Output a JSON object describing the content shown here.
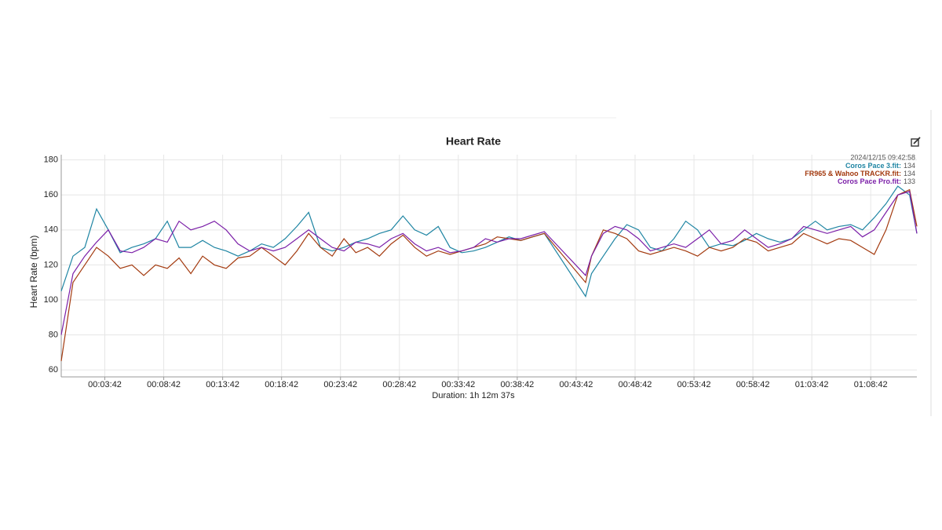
{
  "chart_data": {
    "type": "line",
    "title": "Heart Rate",
    "x_label": "Duration: 1h 12m 37s",
    "y_label": "Heart Rate (bpm)",
    "x": [
      0,
      60,
      120,
      180,
      240,
      300,
      360,
      420,
      480,
      540,
      600,
      660,
      720,
      780,
      840,
      900,
      960,
      1020,
      1080,
      1140,
      1200,
      1260,
      1320,
      1380,
      1440,
      1500,
      1560,
      1620,
      1680,
      1740,
      1800,
      1860,
      1920,
      1980,
      2040,
      2100,
      2160,
      2220,
      2280,
      2340,
      2400,
      2460,
      2670,
      2700,
      2760,
      2820,
      2880,
      2940,
      3000,
      3060,
      3120,
      3180,
      3240,
      3300,
      3360,
      3420,
      3480,
      3540,
      3600,
      3660,
      3720,
      3780,
      3840,
      3900,
      3960,
      4020,
      4080,
      4140,
      4200,
      4260,
      4320,
      4357
    ],
    "series": [
      {
        "name": "Coros Pace 3.fit",
        "color": "#1f85a3",
        "values": [
          105,
          125,
          130,
          152,
          140,
          127,
          130,
          132,
          135,
          145,
          130,
          130,
          134,
          130,
          128,
          125,
          128,
          132,
          130,
          135,
          142,
          150,
          130,
          128,
          130,
          133,
          135,
          138,
          140,
          148,
          140,
          137,
          142,
          130,
          127,
          128,
          130,
          133,
          136,
          134,
          136,
          138,
          102,
          115,
          125,
          135,
          143,
          140,
          130,
          128,
          135,
          145,
          140,
          130,
          132,
          131,
          134,
          138,
          135,
          133,
          135,
          140,
          145,
          140,
          142,
          143,
          140,
          147,
          155,
          165,
          160,
          138
        ]
      },
      {
        "name": "FR965 & Wahoo TRACKR.fit",
        "color": "#a33a0f",
        "values": [
          65,
          110,
          120,
          130,
          125,
          118,
          120,
          114,
          120,
          118,
          124,
          115,
          125,
          120,
          118,
          124,
          125,
          130,
          125,
          120,
          128,
          138,
          130,
          125,
          135,
          127,
          130,
          125,
          132,
          137,
          130,
          125,
          128,
          126,
          128,
          130,
          132,
          136,
          135,
          134,
          136,
          138,
          110,
          125,
          140,
          138,
          135,
          128,
          126,
          128,
          130,
          128,
          125,
          130,
          128,
          130,
          135,
          133,
          128,
          130,
          132,
          138,
          135,
          132,
          135,
          134,
          130,
          126,
          140,
          160,
          163,
          142
        ]
      },
      {
        "name": "Coros Pace Pro.fit",
        "color": "#7b1fa8",
        "values": [
          80,
          115,
          125,
          133,
          140,
          128,
          127,
          130,
          135,
          133,
          145,
          140,
          142,
          145,
          140,
          132,
          128,
          130,
          128,
          130,
          135,
          140,
          135,
          130,
          128,
          133,
          132,
          130,
          135,
          138,
          132,
          128,
          130,
          127,
          128,
          130,
          135,
          133,
          135,
          135,
          137,
          139,
          114,
          125,
          138,
          142,
          140,
          135,
          128,
          130,
          132,
          130,
          135,
          140,
          132,
          134,
          140,
          135,
          130,
          132,
          135,
          142,
          140,
          138,
          140,
          142,
          136,
          140,
          150,
          160,
          162,
          138
        ]
      }
    ],
    "xlim": [
      0,
      4357
    ],
    "ylim": [
      56,
      183
    ],
    "xticks": [
      {
        "value": 222,
        "label": "00:03:42"
      },
      {
        "value": 522,
        "label": "00:08:42"
      },
      {
        "value": 822,
        "label": "00:13:42"
      },
      {
        "value": 1122,
        "label": "00:18:42"
      },
      {
        "value": 1422,
        "label": "00:23:42"
      },
      {
        "value": 1722,
        "label": "00:28:42"
      },
      {
        "value": 2022,
        "label": "00:33:42"
      },
      {
        "value": 2322,
        "label": "00:38:42"
      },
      {
        "value": 2622,
        "label": "00:43:42"
      },
      {
        "value": 2922,
        "label": "00:48:42"
      },
      {
        "value": 3222,
        "label": "00:53:42"
      },
      {
        "value": 3522,
        "label": "00:58:42"
      },
      {
        "value": 3822,
        "label": "01:03:42"
      },
      {
        "value": 4122,
        "label": "01:08:42"
      }
    ],
    "yticks": [
      60,
      80,
      100,
      120,
      140,
      160,
      180
    ],
    "grid": true,
    "tooltip": {
      "timestamp": "2024/12/15 09:42:58",
      "entries": [
        {
          "label": "Coros Pace 3.fit:",
          "value": 134
        },
        {
          "label": "FR965 & Wahoo TRACKR.fit:",
          "value": 134
        },
        {
          "label": "Coros Pace Pro.fit:",
          "value": 133
        }
      ]
    }
  }
}
